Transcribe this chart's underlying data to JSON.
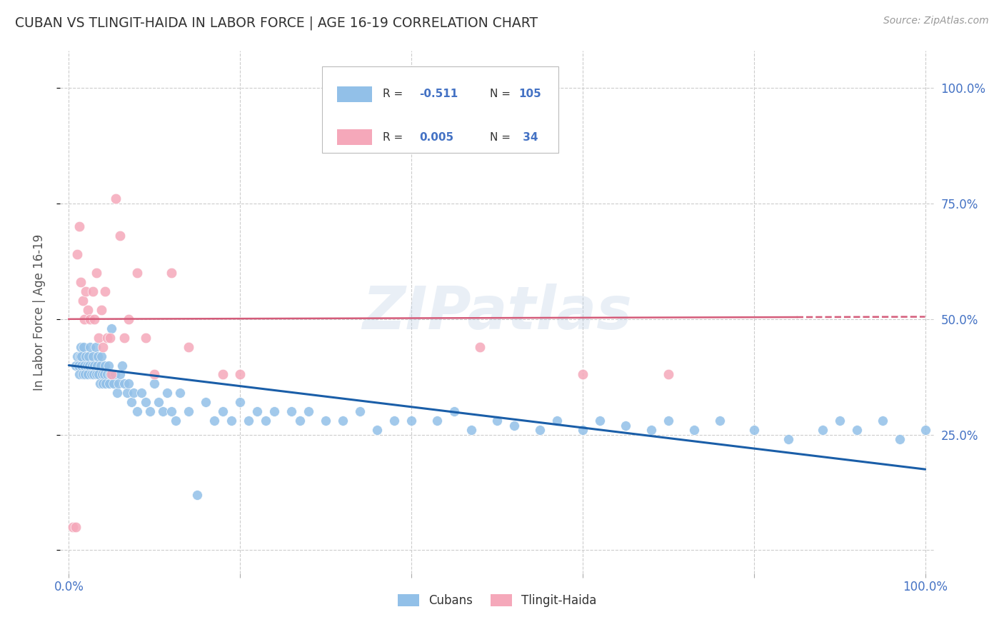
{
  "title": "CUBAN VS TLINGIT-HAIDA IN LABOR FORCE | AGE 16-19 CORRELATION CHART",
  "source": "Source: ZipAtlas.com",
  "ylabel": "In Labor Force | Age 16-19",
  "blue_color": "#92C0E8",
  "pink_color": "#F5A8BA",
  "line_blue": "#1A5EA8",
  "line_pink": "#D45C7A",
  "legend_r_blue": "-0.511",
  "legend_n_blue": "105",
  "legend_r_pink": "0.005",
  "legend_n_pink": "34",
  "watermark": "ZIPatlas",
  "blue_scatter_x": [
    0.008,
    0.01,
    0.011,
    0.012,
    0.013,
    0.014,
    0.015,
    0.015,
    0.016,
    0.017,
    0.018,
    0.019,
    0.02,
    0.021,
    0.022,
    0.023,
    0.024,
    0.025,
    0.026,
    0.027,
    0.028,
    0.029,
    0.03,
    0.031,
    0.032,
    0.033,
    0.034,
    0.035,
    0.036,
    0.037,
    0.038,
    0.039,
    0.04,
    0.041,
    0.042,
    0.043,
    0.045,
    0.046,
    0.047,
    0.048,
    0.05,
    0.052,
    0.054,
    0.056,
    0.058,
    0.06,
    0.062,
    0.065,
    0.068,
    0.07,
    0.073,
    0.076,
    0.08,
    0.085,
    0.09,
    0.095,
    0.1,
    0.105,
    0.11,
    0.115,
    0.12,
    0.125,
    0.13,
    0.14,
    0.15,
    0.16,
    0.17,
    0.18,
    0.19,
    0.2,
    0.21,
    0.22,
    0.23,
    0.24,
    0.26,
    0.27,
    0.28,
    0.3,
    0.32,
    0.34,
    0.36,
    0.38,
    0.4,
    0.43,
    0.45,
    0.47,
    0.5,
    0.52,
    0.55,
    0.57,
    0.6,
    0.62,
    0.65,
    0.68,
    0.7,
    0.73,
    0.76,
    0.8,
    0.84,
    0.88,
    0.9,
    0.92,
    0.95,
    0.97,
    1.0
  ],
  "blue_scatter_y": [
    0.4,
    0.42,
    0.4,
    0.38,
    0.42,
    0.44,
    0.4,
    0.42,
    0.38,
    0.44,
    0.4,
    0.38,
    0.42,
    0.4,
    0.38,
    0.42,
    0.4,
    0.44,
    0.38,
    0.4,
    0.42,
    0.38,
    0.4,
    0.44,
    0.38,
    0.4,
    0.42,
    0.38,
    0.36,
    0.4,
    0.42,
    0.38,
    0.36,
    0.38,
    0.4,
    0.36,
    0.38,
    0.4,
    0.36,
    0.38,
    0.48,
    0.36,
    0.38,
    0.34,
    0.36,
    0.38,
    0.4,
    0.36,
    0.34,
    0.36,
    0.32,
    0.34,
    0.3,
    0.34,
    0.32,
    0.3,
    0.36,
    0.32,
    0.3,
    0.34,
    0.3,
    0.28,
    0.34,
    0.3,
    0.12,
    0.32,
    0.28,
    0.3,
    0.28,
    0.32,
    0.28,
    0.3,
    0.28,
    0.3,
    0.3,
    0.28,
    0.3,
    0.28,
    0.28,
    0.3,
    0.26,
    0.28,
    0.28,
    0.28,
    0.3,
    0.26,
    0.28,
    0.27,
    0.26,
    0.28,
    0.26,
    0.28,
    0.27,
    0.26,
    0.28,
    0.26,
    0.28,
    0.26,
    0.24,
    0.26,
    0.28,
    0.26,
    0.28,
    0.24,
    0.26
  ],
  "pink_scatter_x": [
    0.005,
    0.008,
    0.01,
    0.012,
    0.014,
    0.016,
    0.018,
    0.02,
    0.022,
    0.025,
    0.028,
    0.03,
    0.032,
    0.035,
    0.038,
    0.04,
    0.042,
    0.045,
    0.048,
    0.05,
    0.055,
    0.06,
    0.065,
    0.07,
    0.08,
    0.09,
    0.1,
    0.12,
    0.14,
    0.18,
    0.2,
    0.48,
    0.6,
    0.7
  ],
  "pink_scatter_y": [
    0.05,
    0.05,
    0.64,
    0.7,
    0.58,
    0.54,
    0.5,
    0.56,
    0.52,
    0.5,
    0.56,
    0.5,
    0.6,
    0.46,
    0.52,
    0.44,
    0.56,
    0.46,
    0.46,
    0.38,
    0.76,
    0.68,
    0.46,
    0.5,
    0.6,
    0.46,
    0.38,
    0.6,
    0.44,
    0.38,
    0.38,
    0.44,
    0.38,
    0.38
  ],
  "blue_trend_x0": 0.0,
  "blue_trend_x1": 1.0,
  "blue_trend_y0": 0.4,
  "blue_trend_y1": 0.175,
  "pink_trend_x0": 0.0,
  "pink_trend_x1": 1.0,
  "pink_trend_y0": 0.5,
  "pink_trend_y1": 0.505,
  "xlim": [
    -0.01,
    1.01
  ],
  "ylim": [
    -0.05,
    1.08
  ],
  "xtick_positions": [
    0.0,
    0.2,
    0.4,
    0.6,
    0.8,
    1.0
  ],
  "xtick_labels": [
    "0.0%",
    "",
    "",
    "",
    "",
    "100.0%"
  ],
  "ytick_positions": [
    0.0,
    0.25,
    0.5,
    0.75,
    1.0
  ],
  "ytick_labels": [
    "",
    "25.0%",
    "50.0%",
    "75.0%",
    "100.0%"
  ],
  "grid_color": "#CCCCCC",
  "background_color": "#FFFFFF",
  "tick_color": "#4472C4",
  "title_color": "#333333",
  "source_color": "#999999"
}
